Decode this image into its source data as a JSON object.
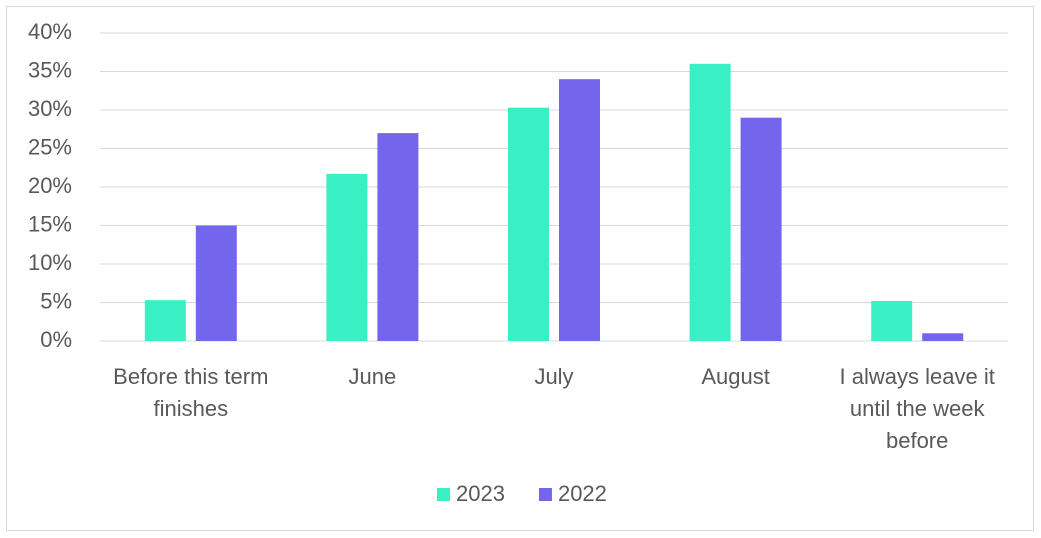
{
  "chart_data": {
    "type": "bar",
    "categories": [
      "Before this term finishes",
      "June",
      "July",
      "August",
      "I always leave it until the week before"
    ],
    "series": [
      {
        "name": "2023",
        "color": "#38F0C4",
        "values": [
          5.3,
          21.7,
          30.3,
          36,
          5.2
        ]
      },
      {
        "name": "2022",
        "color": "#7466EC",
        "values": [
          15,
          27,
          34,
          29,
          1
        ]
      }
    ],
    "ylim": [
      0,
      40
    ],
    "yticks": [
      {
        "value": 0,
        "label": "0%"
      },
      {
        "value": 5,
        "label": "5%"
      },
      {
        "value": 10,
        "label": "10%"
      },
      {
        "value": 15,
        "label": "15%"
      },
      {
        "value": 20,
        "label": "20%"
      },
      {
        "value": 25,
        "label": "25%"
      },
      {
        "value": 30,
        "label": "30%"
      },
      {
        "value": 35,
        "label": "35%"
      },
      {
        "value": 40,
        "label": "40%"
      }
    ],
    "grid": true,
    "legend": "bottom"
  }
}
